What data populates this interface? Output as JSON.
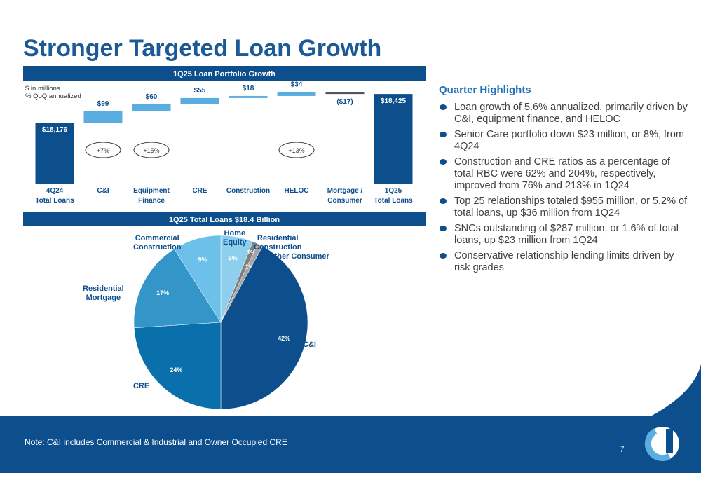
{
  "title": "Stronger Targeted Loan Growth",
  "chart_data": [
    {
      "type": "waterfall",
      "title": "1Q25 Loan Portfolio Growth",
      "subtitle": [
        "$ in millions",
        "% QoQ annualized"
      ],
      "categories": [
        "4Q24\nTotal Loans",
        "C&I",
        "Equipment\nFinance",
        "CRE",
        "Construction",
        "HELOC",
        "Mortgage /\nConsumer",
        "1Q25\nTotal Loans"
      ],
      "values": [
        18176,
        99,
        60,
        55,
        18,
        34,
        -17,
        18425
      ],
      "value_labels": [
        "$18,176",
        "$99",
        "$60",
        "$55",
        "$18",
        "$34",
        "($17)",
        "$18,425"
      ],
      "growth_labels": [
        null,
        "+7%",
        "+15%",
        null,
        null,
        "+13%",
        null,
        null
      ],
      "totals": [
        0,
        7
      ],
      "color": "#0d4e8c",
      "increase_color": "#5aade0",
      "decrease_color": "#555555",
      "ylim": [
        17650,
        18450
      ]
    },
    {
      "type": "pie",
      "title": "1Q25 Total Loans $18.4 Billion",
      "categories": [
        "Home\nEquity",
        "Residential\nConstruction",
        "Other Consumer",
        "C&I",
        "CRE",
        "Residential\nMortgage",
        "Commercial\nConstruction"
      ],
      "values": [
        6,
        1,
        1,
        42,
        24,
        17,
        9
      ],
      "colors": [
        "#8ecfee",
        "#7f7f7f",
        "#a6a6a6",
        "#0d4e8c",
        "#0a70ac",
        "#3496c8",
        "#6cc0ea"
      ]
    }
  ],
  "highlights": {
    "heading": "Quarter Highlights",
    "items": [
      "Loan growth of 5.6% annualized, primarily driven by C&I, equipment finance, and HELOC",
      "Senior Care portfolio down $23 million, or 8%, from 4Q24",
      "Construction and CRE ratios as a percentage of total RBC were 62% and 204%, respectively, improved from 76% and 213% in 1Q24",
      "Top 25 relationships totaled $955 million, or 5.2% of total loans, up $36 million from 1Q24",
      "SNCs outstanding of $287 million, or 1.6% of total loans, up $23 million from 1Q24",
      "Conservative relationship lending limits driven by risk grades"
    ]
  },
  "note": "Note: C&I includes Commercial & Industrial and Owner Occupied CRE",
  "page_number": "7"
}
